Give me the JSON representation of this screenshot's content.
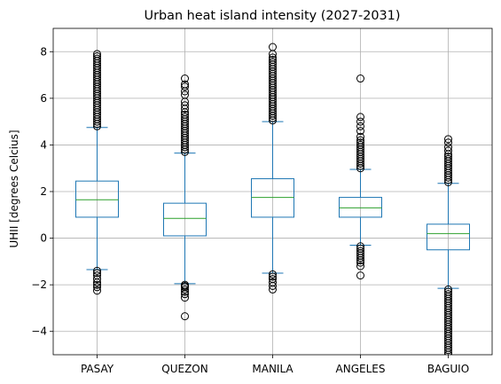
{
  "chart_data": {
    "type": "box",
    "title": "Urban heat island intensity (2027-2031)",
    "xlabel": "",
    "ylabel": "UHII [degrees Celcius]",
    "ylim": [
      -5,
      9
    ],
    "yticks": [
      -4,
      -2,
      0,
      2,
      4,
      6,
      8
    ],
    "grid": true,
    "colors": {
      "box": "#1f77b4",
      "median": "#2ca02c",
      "grid": "#b0b0b0",
      "axes": "#000000"
    },
    "categories": [
      "PASAY",
      "QUEZON",
      "MANILA",
      "ANGELES",
      "BAGUIO"
    ],
    "boxes": [
      {
        "name": "PASAY",
        "whisker_low": -1.35,
        "q1": 0.9,
        "median": 1.65,
        "q3": 2.45,
        "whisker_high": 4.75,
        "outliers_low": [
          -1.4,
          -1.5,
          -1.6,
          -1.75,
          -1.9,
          -2.0,
          -2.1,
          -2.25
        ],
        "outliers_high": [
          4.8,
          4.9,
          5.0,
          5.1,
          5.2,
          5.3,
          5.4,
          5.5,
          5.6,
          5.7,
          5.8,
          5.9,
          6.0,
          6.1,
          6.2,
          6.3,
          6.4,
          6.5,
          6.6,
          6.7,
          6.8,
          6.9,
          7.0,
          7.1,
          7.2,
          7.3,
          7.4,
          7.5,
          7.6,
          7.7,
          7.8,
          7.9
        ]
      },
      {
        "name": "QUEZON",
        "whisker_low": -1.95,
        "q1": 0.1,
        "median": 0.85,
        "q3": 1.5,
        "whisker_high": 3.65,
        "outliers_low": [
          -2.0,
          -2.05,
          -2.1,
          -2.2,
          -2.3,
          -2.4,
          -2.55,
          -3.35
        ],
        "outliers_high": [
          3.7,
          3.8,
          3.9,
          4.0,
          4.1,
          4.2,
          4.3,
          4.4,
          4.5,
          4.6,
          4.7,
          4.8,
          4.9,
          5.0,
          5.1,
          5.2,
          5.3,
          5.4,
          5.55,
          5.7,
          5.85,
          6.15,
          6.3,
          6.5,
          6.6,
          6.85
        ]
      },
      {
        "name": "MANILA",
        "whisker_low": -1.5,
        "q1": 0.9,
        "median": 1.75,
        "q3": 2.55,
        "whisker_high": 5.0,
        "outliers_low": [
          -1.55,
          -1.65,
          -1.75,
          -1.9,
          -2.05,
          -2.2
        ],
        "outliers_high": [
          5.05,
          5.15,
          5.25,
          5.35,
          5.45,
          5.55,
          5.65,
          5.75,
          5.85,
          5.95,
          6.05,
          6.15,
          6.25,
          6.35,
          6.45,
          6.55,
          6.65,
          6.75,
          6.85,
          6.95,
          7.05,
          7.15,
          7.25,
          7.35,
          7.45,
          7.55,
          7.65,
          7.75,
          7.9,
          8.2
        ]
      },
      {
        "name": "ANGELES",
        "whisker_low": -0.3,
        "q1": 0.9,
        "median": 1.3,
        "q3": 1.75,
        "whisker_high": 2.95,
        "outliers_low": [
          -0.35,
          -0.45,
          -0.55,
          -0.65,
          -0.75,
          -0.85,
          -0.95,
          -1.05,
          -1.2,
          -1.6
        ],
        "outliers_high": [
          3.0,
          3.1,
          3.2,
          3.3,
          3.4,
          3.5,
          3.6,
          3.7,
          3.8,
          3.9,
          4.0,
          4.1,
          4.2,
          4.35,
          4.6,
          4.8,
          5.0,
          5.2,
          6.85
        ]
      },
      {
        "name": "BAGUIO",
        "whisker_low": -2.15,
        "q1": -0.5,
        "median": 0.2,
        "q3": 0.6,
        "whisker_high": 2.35,
        "outliers_low": [
          -2.2,
          -2.3,
          -2.4,
          -2.5,
          -2.6,
          -2.7,
          -2.8,
          -2.9,
          -3.0,
          -3.1,
          -3.2,
          -3.3,
          -3.4,
          -3.5,
          -3.6,
          -3.7,
          -3.8,
          -3.9,
          -4.0,
          -4.1,
          -4.2,
          -4.3,
          -4.4,
          -4.5,
          -4.6,
          -4.7,
          -4.8,
          -4.9,
          -5.0
        ],
        "outliers_high": [
          2.4,
          2.5,
          2.6,
          2.7,
          2.8,
          2.9,
          3.0,
          3.1,
          3.2,
          3.3,
          3.4,
          3.5,
          3.6,
          3.75,
          3.9,
          4.1,
          4.25
        ]
      }
    ]
  }
}
